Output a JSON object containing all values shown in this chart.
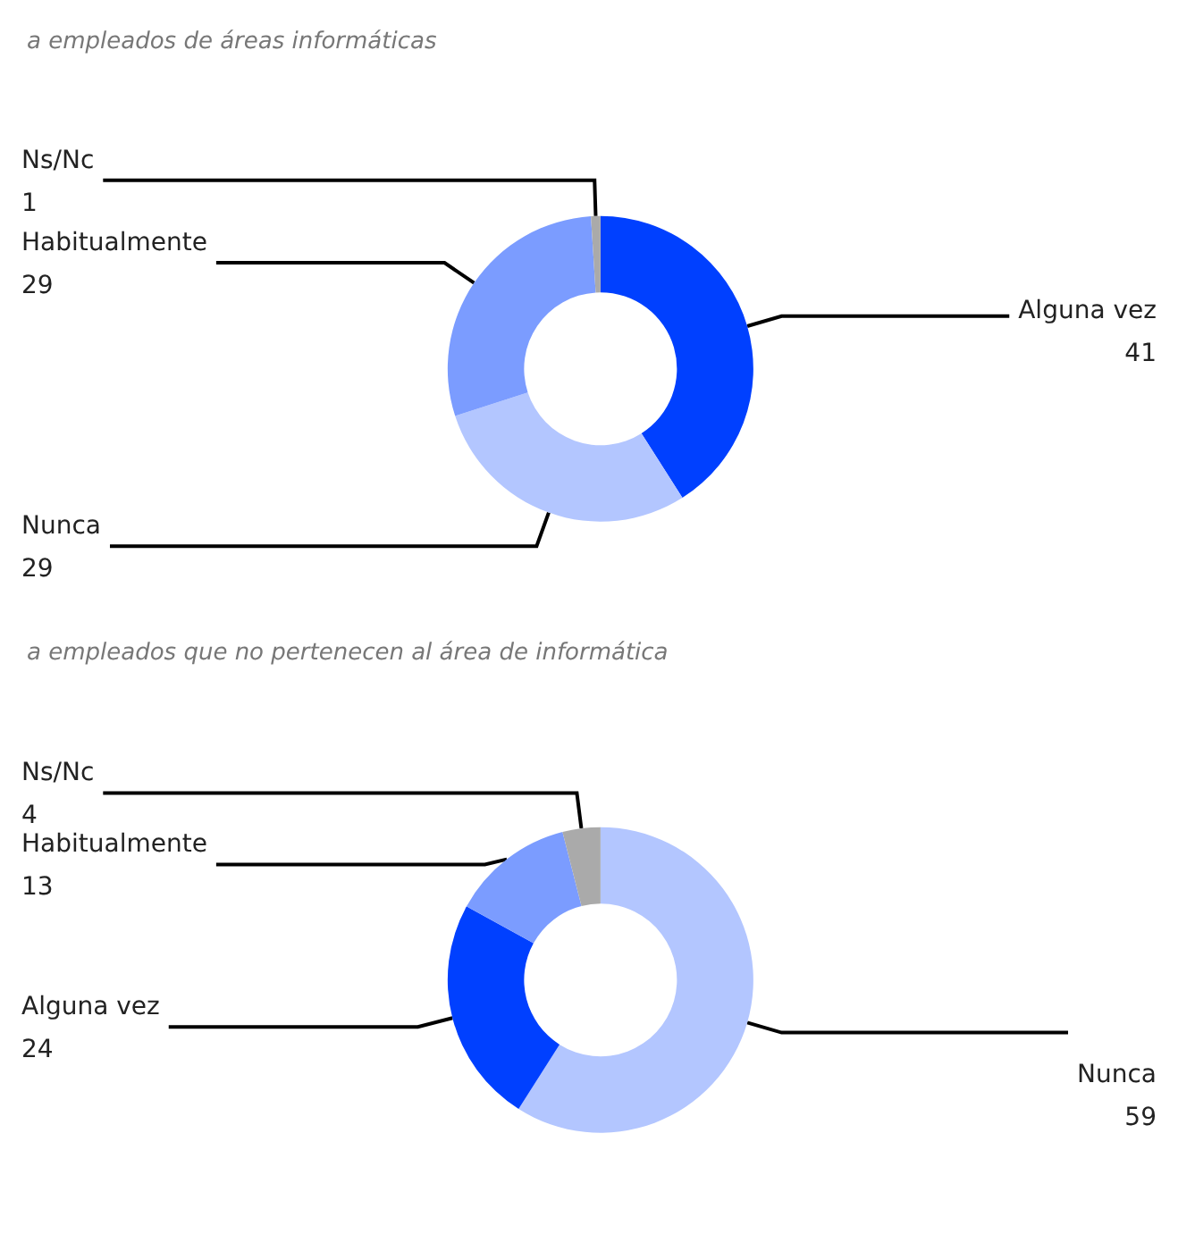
{
  "chart_data": [
    {
      "type": "donut",
      "title": "a empleados de áreas informáticas",
      "categories": [
        "Alguna vez",
        "Nunca",
        "Habitualmente",
        "Ns/Nc"
      ],
      "values": [
        41,
        29,
        29,
        1
      ],
      "colors": [
        "#0040ff",
        "#b3c6ff",
        "#7b9cff",
        "#aaaaaa"
      ],
      "data_labels": true
    },
    {
      "type": "donut",
      "title": "a empleados que no pertenecen al área de informática",
      "categories": [
        "Nunca",
        "Alguna vez",
        "Habitualmente",
        "Ns/Nc"
      ],
      "values": [
        59,
        24,
        13,
        4
      ],
      "colors": [
        "#b3c6ff",
        "#0040ff",
        "#7b9cff",
        "#aaaaaa"
      ],
      "data_labels": true
    }
  ]
}
